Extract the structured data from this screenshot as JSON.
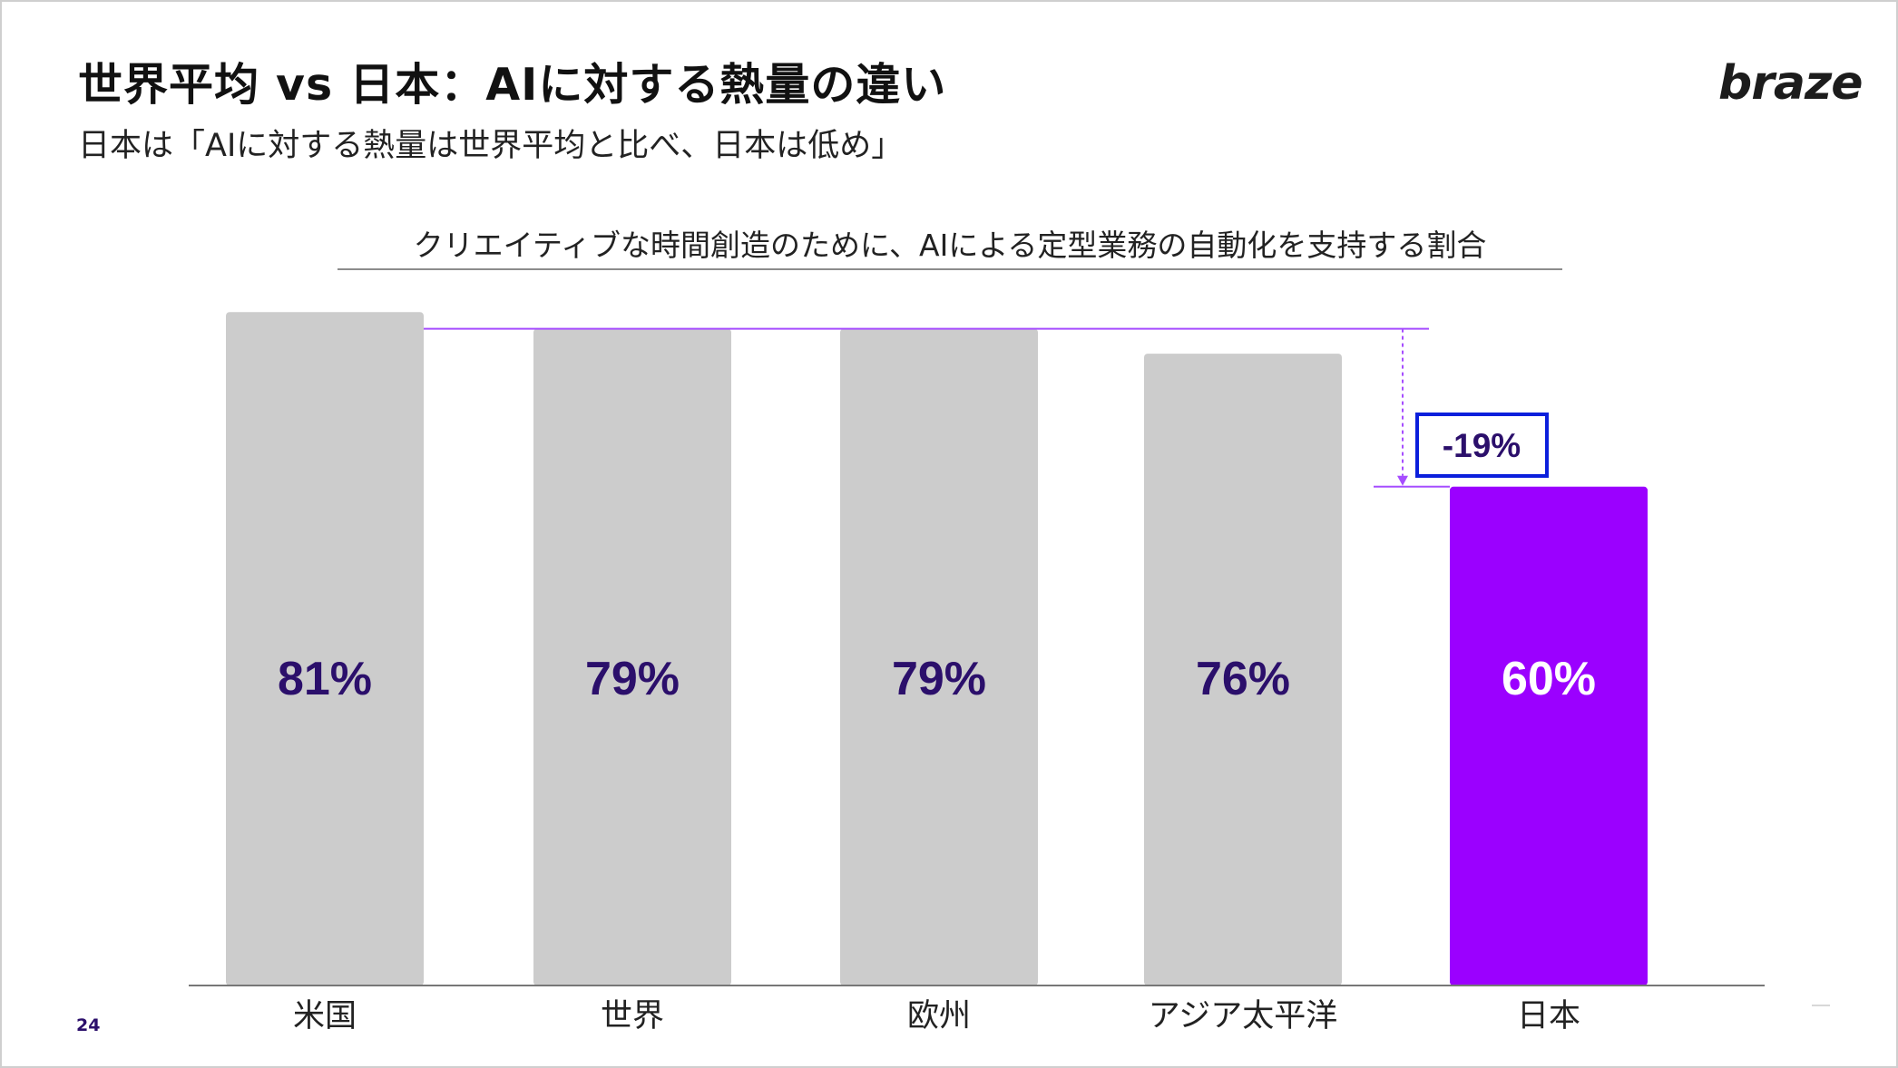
{
  "header": {
    "title": "世界平均 vs 日本：AIに対する熱量の違い",
    "subtitle": "日本は「AIに対する熱量は世界平均と比べ、日本は低め」",
    "logo_text": "braze"
  },
  "footer": {
    "page_number": "24"
  },
  "colors": {
    "bar_default": "#cccccc",
    "bar_highlight": "#9b00ff",
    "label_dark": "#2b0f6b",
    "label_light": "#ffffff",
    "annotation_line": "#a64dff",
    "callout_border": "#0b1fdc"
  },
  "chart_data": {
    "type": "bar",
    "title": "クリエイティブな時間創造のために、AIによる定型業務の自動化を支持する割合",
    "xlabel": "",
    "ylabel": "",
    "ylim": [
      0,
      100
    ],
    "grid": false,
    "categories": [
      "米国",
      "世界",
      "欧州",
      "アジア太平洋",
      "日本"
    ],
    "values": [
      81,
      79,
      79,
      76,
      60
    ],
    "value_labels": [
      "81%",
      "79%",
      "79%",
      "76%",
      "60%"
    ],
    "highlight_category": "日本",
    "annotation": {
      "from_category": "世界",
      "to_category": "日本",
      "label": "-19%"
    }
  }
}
